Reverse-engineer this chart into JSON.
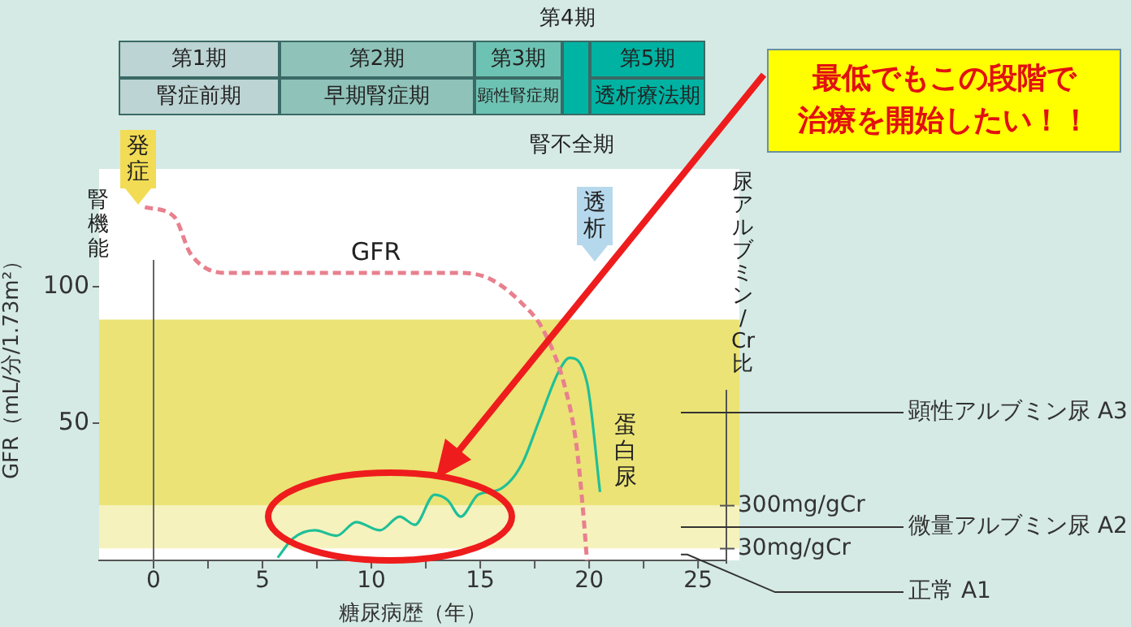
{
  "chart_data": {
    "type": "line",
    "xlabel": "糖尿病歴（年）",
    "ylabel": "GFR（mL/分/1.73m²）",
    "y2label": "尿アルブミン/Cr比",
    "xlim": [
      -2.5,
      26.3
    ],
    "xticks": [
      0,
      {
        "value": 2.5,
        "label": null
      },
      5,
      {
        "value": 7.5,
        "label": null
      },
      10,
      {
        "value": 12.5,
        "label": null
      },
      15,
      {
        "value": 17.5,
        "label": null
      },
      20,
      {
        "value": 22.5,
        "label": null
      },
      25
    ],
    "ylim": [
      0,
      143
    ],
    "yticks": [
      50,
      100
    ],
    "series": [
      {
        "color": "#e8808e",
        "line_style": "dashed",
        "x": [
          -0.4,
          0.95,
          1.7,
          3.4,
          7.9,
          14.1,
          15.4,
          16.9,
          17.9,
          18.9,
          19.4,
          19.7,
          19.9
        ],
        "values": [
          129,
          125.5,
          112,
          105,
          105,
          105,
          103,
          94,
          84,
          63,
          43,
          20,
          0
        ]
      },
      {
        "color": "#20bf98",
        "line_style": "solid",
        "x": [
          5.7,
          6.4,
          7.4,
          8.4,
          9.3,
          10.4,
          11.3,
          12.0,
          12.9,
          13.5,
          14.1,
          14.9,
          15.9,
          16.9,
          17.7,
          18.6,
          19.1,
          19.9,
          20.5
        ],
        "values": [
          1,
          8,
          11,
          9,
          14,
          11,
          16,
          13,
          24,
          22,
          16,
          24,
          26,
          35,
          51,
          69,
          74,
          65,
          25
        ]
      }
    ],
    "bands": [
      {
        "axis": "y",
        "from": 20,
        "to": 88,
        "label": "顕性アルブミン尿 A3",
        "color": "#ebe375"
      },
      {
        "axis": "y",
        "from": 4.3,
        "to": 20,
        "label": "微量アルブミン尿 A2",
        "color": "#f6f2bd"
      },
      {
        "axis": "y",
        "from": 0,
        "to": 4.3,
        "label": "正常 A1",
        "color": "#ffffff"
      }
    ],
    "ref_lines": [
      {
        "axis": "x",
        "value": 0,
        "color": "#666666"
      },
      {
        "axis": "y",
        "value": 20,
        "label": "300mg/gCr",
        "color": "#555555"
      },
      {
        "axis": "y",
        "value": 4.3,
        "label": "30mg/gCr",
        "color": "#555555"
      }
    ],
    "annotations": [
      "第1期",
      "腎症前期",
      "第2期",
      "早期腎症期",
      "第3期",
      "顕性腎症期",
      "第4期",
      "腎不全期",
      "第5期",
      "透析療法期",
      "発症",
      "透析",
      "腎機能",
      "GFR",
      "蛋白尿",
      "最低でもこの段階で",
      "治療を開始したい！！"
    ],
    "grid": false,
    "legend": false,
    "marker": "none"
  }
}
